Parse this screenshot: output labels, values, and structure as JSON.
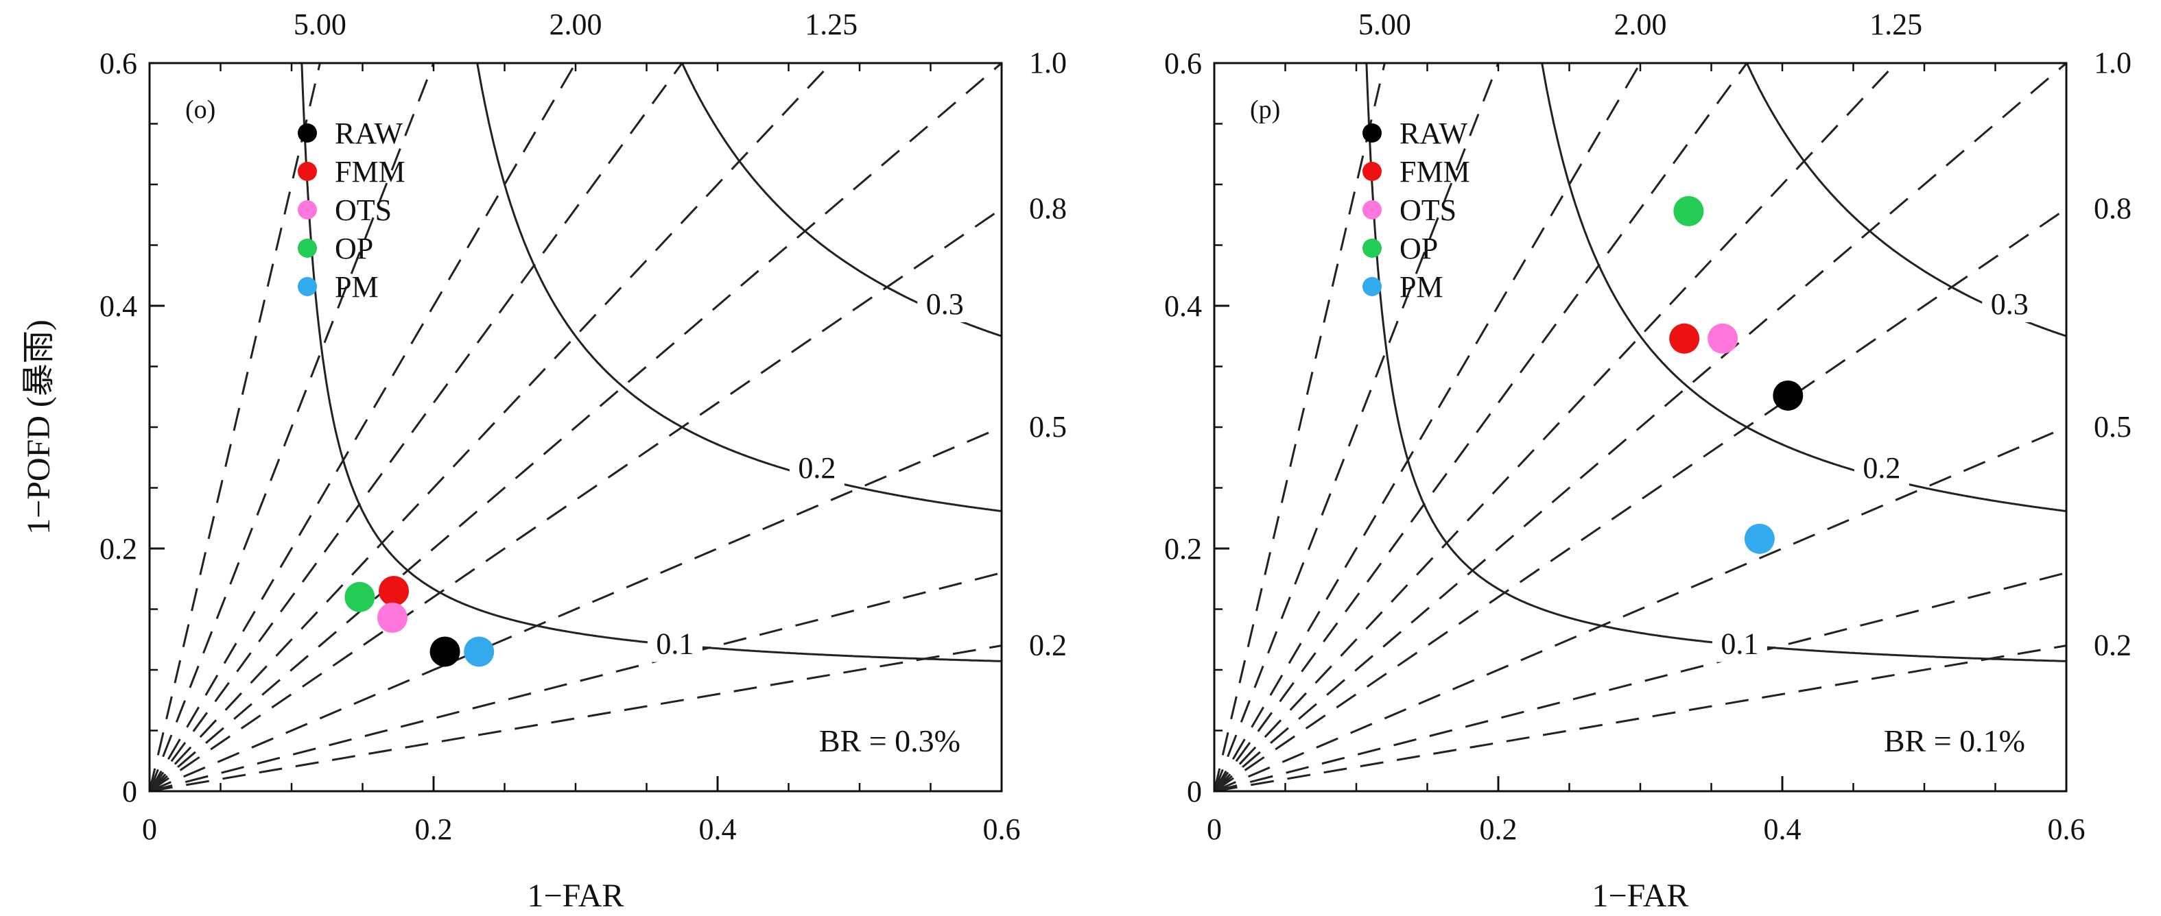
{
  "chart_data": [
    {
      "type": "scatter",
      "subtype": "performance-diagram",
      "panel_label": "(o)",
      "xlabel": "1−FAR",
      "ylabel": "1−POFD (暴雨)",
      "xlim": [
        0,
        0.6
      ],
      "ylim": [
        0,
        0.6
      ],
      "x_ticks": [
        "0",
        "0.2",
        "0.4",
        "0.6"
      ],
      "y_ticks": [
        "0",
        "0.2",
        "0.4",
        "0.6"
      ],
      "top_ticks": [
        {
          "label": "5.00",
          "value": 5.0
        },
        {
          "label": "2.00",
          "value": 2.0
        },
        {
          "label": "1.25",
          "value": 1.25
        }
      ],
      "right_ticks": [
        {
          "label": "1.0",
          "value": 1.0
        },
        {
          "label": "0.8",
          "value": 0.8
        },
        {
          "label": "0.5",
          "value": 0.5
        },
        {
          "label": "0.2",
          "value": 0.2
        }
      ],
      "csi_contours": [
        {
          "label": "0.1",
          "value": 0.1,
          "label_x": 0.37,
          "label_y": 0.12
        },
        {
          "label": "0.2",
          "value": 0.2,
          "label_x": 0.47,
          "label_y": 0.265
        },
        {
          "label": "0.3",
          "value": 0.3,
          "label_x": 0.56,
          "label_y": 0.4
        }
      ],
      "bias_lines": [
        0.2,
        0.3,
        0.5,
        0.8,
        1.0,
        1.25,
        1.6,
        2.0,
        3.0,
        5.0
      ],
      "annotation": "BR = 0.3%",
      "legend_position": "top-left",
      "series": [
        {
          "name": "RAW",
          "color": "#000000",
          "x": 0.208,
          "y": 0.115
        },
        {
          "name": "FMM",
          "color": "#ee1111",
          "x": 0.172,
          "y": 0.165
        },
        {
          "name": "OTS",
          "color": "#ff77dd",
          "x": 0.171,
          "y": 0.143
        },
        {
          "name": "OP",
          "color": "#22cc55",
          "x": 0.148,
          "y": 0.16
        },
        {
          "name": "PM",
          "color": "#33aaee",
          "x": 0.232,
          "y": 0.115
        }
      ]
    },
    {
      "type": "scatter",
      "subtype": "performance-diagram",
      "panel_label": "(p)",
      "xlabel": "1−FAR",
      "ylabel": "",
      "xlim": [
        0,
        0.6
      ],
      "ylim": [
        0,
        0.6
      ],
      "x_ticks": [
        "0",
        "0.2",
        "0.4",
        "0.6"
      ],
      "y_ticks": [
        "0",
        "0.2",
        "0.4",
        "0.6"
      ],
      "top_ticks": [
        {
          "label": "5.00",
          "value": 5.0
        },
        {
          "label": "2.00",
          "value": 2.0
        },
        {
          "label": "1.25",
          "value": 1.25
        }
      ],
      "right_ticks": [
        {
          "label": "1.0",
          "value": 1.0
        },
        {
          "label": "0.8",
          "value": 0.8
        },
        {
          "label": "0.5",
          "value": 0.5
        },
        {
          "label": "0.2",
          "value": 0.2
        }
      ],
      "csi_contours": [
        {
          "label": "0.1",
          "value": 0.1,
          "label_x": 0.37,
          "label_y": 0.12
        },
        {
          "label": "0.2",
          "value": 0.2,
          "label_x": 0.47,
          "label_y": 0.265
        },
        {
          "label": "0.3",
          "value": 0.3,
          "label_x": 0.56,
          "label_y": 0.4
        }
      ],
      "bias_lines": [
        0.2,
        0.3,
        0.5,
        0.8,
        1.0,
        1.25,
        1.6,
        2.0,
        3.0,
        5.0
      ],
      "annotation": "BR = 0.1%",
      "legend_position": "top-left",
      "series": [
        {
          "name": "RAW",
          "color": "#000000",
          "x": 0.404,
          "y": 0.326
        },
        {
          "name": "FMM",
          "color": "#ee1111",
          "x": 0.331,
          "y": 0.373
        },
        {
          "name": "OTS",
          "color": "#ff77dd",
          "x": 0.358,
          "y": 0.373
        },
        {
          "name": "OP",
          "color": "#22cc55",
          "x": 0.334,
          "y": 0.478
        },
        {
          "name": "PM",
          "color": "#33aaee",
          "x": 0.384,
          "y": 0.208
        }
      ]
    }
  ]
}
